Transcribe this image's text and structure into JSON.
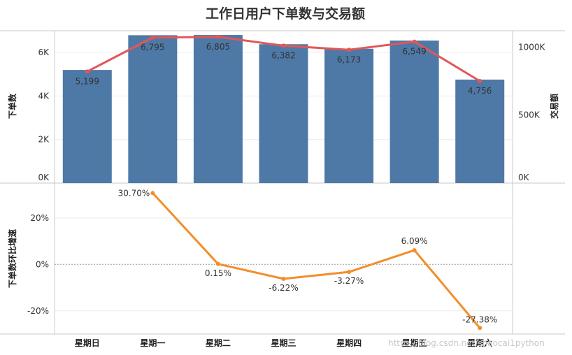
{
  "chart_data": [
    {
      "type": "bar",
      "title": "工作日用户下单数与交易额",
      "categories": [
        "星期日",
        "星期一",
        "星期二",
        "星期三",
        "星期四",
        "星期五",
        "星期六"
      ],
      "series": [
        {
          "name": "下单数",
          "values": [
            5199,
            6795,
            6805,
            6382,
            6173,
            6549,
            4756
          ],
          "color": "#4e79a7"
        },
        {
          "name": "交易额",
          "type": "line",
          "axis": "right",
          "values": [
            820000,
            1070000,
            1075000,
            1010000,
            980000,
            1040000,
            750000
          ],
          "color": "#e15759"
        }
      ],
      "ylabel": "下单数",
      "ylim": [
        0,
        7000
      ],
      "yticks": [
        {
          "value": 0,
          "label": "0K"
        },
        {
          "value": 2000,
          "label": "2K"
        },
        {
          "value": 4000,
          "label": "4K"
        },
        {
          "value": 6000,
          "label": "6K"
        }
      ],
      "y2label": "交易额",
      "y2lim": [
        0,
        1120000
      ],
      "y2ticks": [
        {
          "value": 0,
          "label": "0K"
        },
        {
          "value": 500000,
          "label": "500K"
        },
        {
          "value": 1000000,
          "label": "1000K"
        }
      ],
      "data_labels": [
        "5,199",
        "6,795",
        "6,805",
        "6,382",
        "6,173",
        "6,549",
        "4,756"
      ]
    },
    {
      "type": "line",
      "categories": [
        "星期日",
        "星期一",
        "星期二",
        "星期三",
        "星期四",
        "星期五",
        "星期六"
      ],
      "series": [
        {
          "name": "下单数环比增速",
          "values": [
            null,
            30.7,
            0.15,
            -6.22,
            -3.27,
            6.09,
            -27.38
          ],
          "color": "#f28e2b"
        }
      ],
      "ylabel": "下单数环比增速",
      "ylim": [
        -30,
        35
      ],
      "yticks": [
        {
          "value": -20,
          "label": "-20%"
        },
        {
          "value": 0,
          "label": "0%"
        },
        {
          "value": 20,
          "label": "20%"
        }
      ],
      "data_labels": [
        "",
        "30.70%",
        "0.15%",
        "-6.22%",
        "-3.27%",
        "6.09%",
        "-27.38%"
      ]
    }
  ],
  "watermark": "https://blog.csdn.net/shaocai1python"
}
